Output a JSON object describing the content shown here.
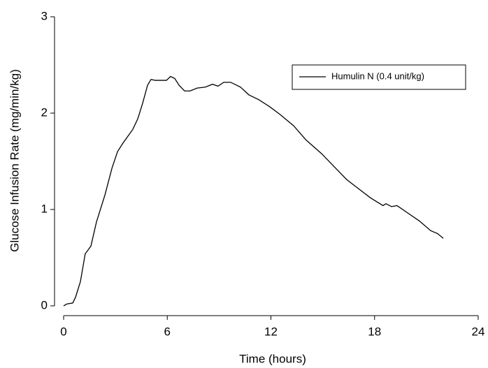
{
  "chart_data": {
    "type": "line",
    "x_label": "Time (hours)",
    "y_label": "Glucose Infusion Rate (mg/min/kg)",
    "xlim": [
      0,
      24
    ],
    "xticks": [
      0,
      6,
      12,
      18,
      24
    ],
    "ylim": [
      0,
      3
    ],
    "yticks": [
      0,
      1,
      2,
      3
    ],
    "legend": "upper right",
    "x": [
      0,
      0.2,
      0.53,
      0.69,
      0.97,
      1.25,
      1.58,
      1.9,
      2.39,
      2.8,
      3.12,
      3.44,
      3.68,
      4.0,
      4.29,
      4.57,
      4.86,
      5.06,
      5.3,
      5.7,
      5.95,
      6.19,
      6.43,
      6.68,
      7.0,
      7.32,
      7.73,
      8.2,
      8.62,
      8.94,
      9.27,
      9.67,
      10.24,
      10.72,
      11.29,
      11.9,
      12.5,
      13.31,
      14.04,
      14.93,
      15.74,
      16.39,
      17.04,
      17.77,
      18.49,
      18.66,
      18.98,
      19.3,
      19.95,
      20.6,
      21.25,
      21.65,
      21.98
    ],
    "series": [
      {
        "name": "Humulin N (0.4 unit/kg)",
        "color": "#000000",
        "values": [
          0,
          0.02,
          0.03,
          0.09,
          0.25,
          0.54,
          0.62,
          0.87,
          1.15,
          1.43,
          1.6,
          1.69,
          1.75,
          1.83,
          1.94,
          2.1,
          2.29,
          2.35,
          2.34,
          2.34,
          2.34,
          2.38,
          2.36,
          2.29,
          2.23,
          2.23,
          2.26,
          2.27,
          2.3,
          2.28,
          2.32,
          2.32,
          2.27,
          2.19,
          2.14,
          2.07,
          1.99,
          1.87,
          1.72,
          1.58,
          1.43,
          1.31,
          1.22,
          1.12,
          1.04,
          1.06,
          1.03,
          1.04,
          0.96,
          0.88,
          0.78,
          0.75,
          0.7
        ]
      }
    ]
  }
}
